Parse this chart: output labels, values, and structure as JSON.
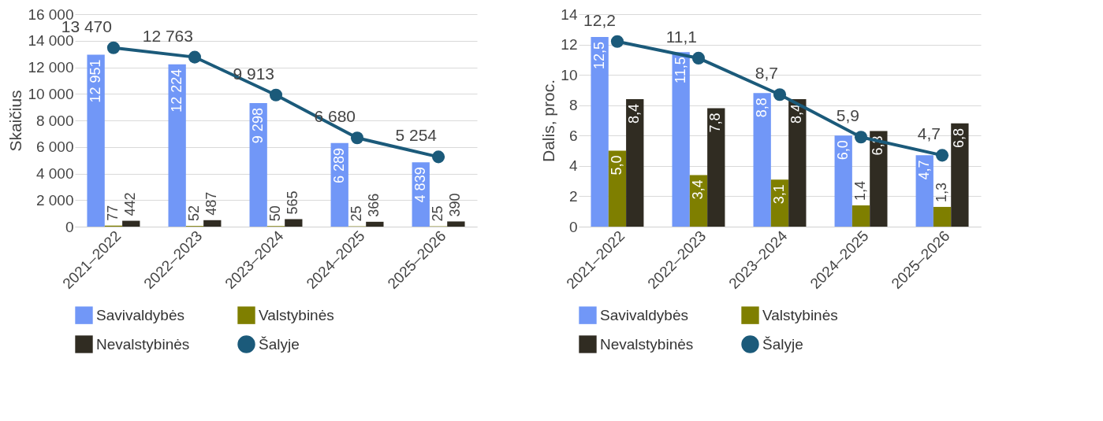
{
  "chart_data": [
    {
      "type": "bar",
      "ylabel": "Skaičius",
      "categories": [
        "2021–2022",
        "2022–2023",
        "2023–2024",
        "2024–2025",
        "2025–2026"
      ],
      "ylim": [
        0,
        16000
      ],
      "yticks": [
        0,
        {
          "value": 2000,
          "label": "2 000"
        },
        {
          "value": 4000,
          "label": "4 000"
        },
        {
          "value": 6000,
          "label": "6 000"
        },
        {
          "value": 8000,
          "label": "8 000"
        },
        {
          "value": 10000,
          "label": "10 000"
        },
        {
          "value": 12000,
          "label": "12 000"
        },
        {
          "value": 14000,
          "label": "14 000"
        },
        {
          "value": 16000,
          "label": "16 000"
        }
      ],
      "grid": "y",
      "legend": "bottom",
      "series": [
        {
          "name": "Savivaldybės",
          "color": "#7197f7",
          "values": [
            12951,
            12224,
            9298,
            6289,
            4839
          ],
          "value_labels": [
            "12 951",
            "12 224",
            "9 298",
            "6 289",
            "4 839"
          ]
        },
        {
          "name": "Valstybinės",
          "color": "#7f7f00",
          "values": [
            77,
            52,
            50,
            25,
            25
          ],
          "value_labels": [
            "77",
            "52",
            "50",
            "25",
            "25"
          ]
        },
        {
          "name": "Nevalstybinės",
          "color": "#302c22",
          "values": [
            442,
            487,
            565,
            366,
            390
          ],
          "value_labels": [
            "442",
            "487",
            "565",
            "366",
            "390"
          ]
        },
        {
          "name": "Šalyje",
          "type": "line",
          "marker": "circle",
          "color": "#1b5a7a",
          "values": [
            13470,
            12763,
            9913,
            6680,
            5254
          ],
          "value_labels": [
            "13 470",
            "12 763",
            "9 913",
            "6 680",
            "5 254"
          ]
        }
      ]
    },
    {
      "type": "bar",
      "ylabel": "Dalis, proc.",
      "categories": [
        "2021–2022",
        "2022–2023",
        "2023–2024",
        "2024–2025",
        "2025–2026"
      ],
      "ylim": [
        0,
        14
      ],
      "yticks": [
        0,
        2,
        4,
        6,
        8,
        10,
        12,
        14
      ],
      "grid": "y",
      "legend": "bottom",
      "series": [
        {
          "name": "Savivaldybės",
          "color": "#7197f7",
          "values": [
            12.5,
            11.5,
            8.8,
            6.0,
            4.7
          ],
          "value_labels": [
            "12,5",
            "11,5",
            "8,8",
            "6,0",
            "4,7"
          ]
        },
        {
          "name": "Valstybinės",
          "color": "#7f7f00",
          "values": [
            5.0,
            3.4,
            3.1,
            1.4,
            1.3
          ],
          "value_labels": [
            "5,0",
            "3,4",
            "3,1",
            "1,4",
            "1,3"
          ]
        },
        {
          "name": "Nevalstybinės",
          "color": "#302c22",
          "values": [
            8.4,
            7.8,
            8.4,
            6.3,
            6.8
          ],
          "value_labels": [
            "8,4",
            "7,8",
            "8,4",
            "6,3",
            "6,8"
          ]
        },
        {
          "name": "Šalyje",
          "type": "line",
          "marker": "circle",
          "color": "#1b5a7a",
          "values": [
            12.2,
            11.1,
            8.7,
            5.9,
            4.7
          ],
          "value_labels": [
            "12,2",
            "11,1",
            "8,7",
            "5,9",
            "4,7"
          ]
        }
      ]
    }
  ]
}
